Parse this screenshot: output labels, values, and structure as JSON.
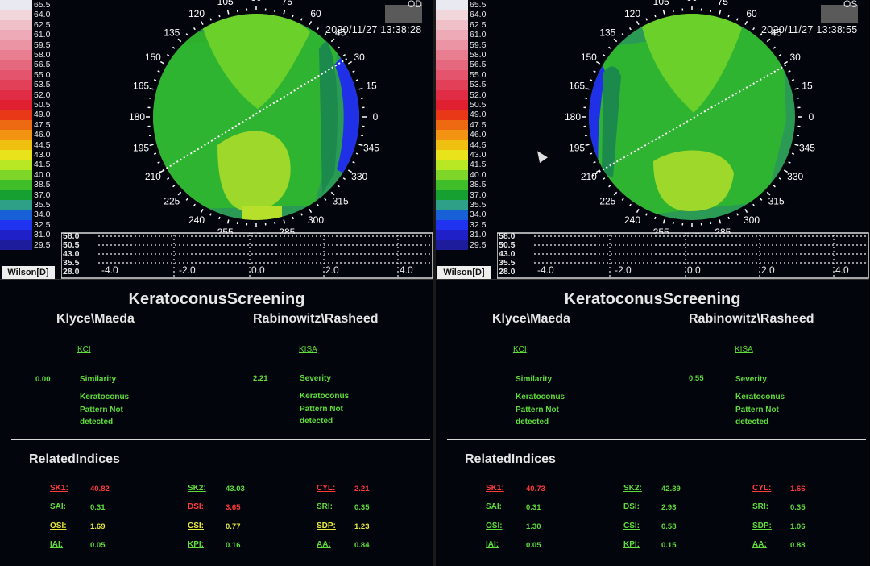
{
  "colors": {
    "green_text": "#5fdc3a",
    "red_text": "#ff3b3b",
    "yellow_text": "#e8e83c",
    "dark_bg": "#02050c"
  },
  "scale": {
    "label": "Wilson[D]",
    "values": [
      "65.5",
      "64.0",
      "62.5",
      "61.0",
      "59.5",
      "58.0",
      "56.5",
      "55.0",
      "53.5",
      "52.0",
      "50.5",
      "49.0",
      "47.5",
      "46.0",
      "44.5",
      "43.0",
      "41.5",
      "40.0",
      "38.5",
      "37.0",
      "35.5",
      "34.0",
      "32.5",
      "31.0",
      "29.5"
    ],
    "colors": [
      "#e9e9f2",
      "#f1d6dc",
      "#f0c0c8",
      "#eeaab6",
      "#eb94a4",
      "#e87e90",
      "#e6687e",
      "#e4546c",
      "#e24058",
      "#e02c44",
      "#e01f30",
      "#e83818",
      "#ee6a12",
      "#f29412",
      "#f0c010",
      "#e8e31a",
      "#b8e824",
      "#7ed628",
      "#3fbe2a",
      "#17a032",
      "#2ea088",
      "#1860d8",
      "#2033f0",
      "#2020c8",
      "#1c1c9c"
    ]
  },
  "map": {
    "angle_labels": [
      "0",
      "15",
      "30",
      "45",
      "60",
      "75",
      "90",
      "105",
      "120",
      "135",
      "150",
      "165",
      "180",
      "195",
      "210",
      "225",
      "240",
      "255",
      "270",
      "285",
      "300",
      "315",
      "330",
      "345"
    ]
  },
  "profile": {
    "y_labels": [
      "58.0",
      "50.5",
      "43.0",
      "35.5",
      "28.0"
    ],
    "x_labels": [
      "-4.0",
      "-2.0",
      "0.0",
      "2.0",
      "4.0"
    ]
  },
  "panels": [
    {
      "eye": "OD",
      "datestamp": "2020/11/27  13:38:28",
      "title": "KeratoconusScreening",
      "klyce": {
        "heading": "Klyce\\Maeda",
        "link": "KCI",
        "value": "0.00",
        "label": "Similarity",
        "result": [
          "Keratoconus",
          "Pattern Not",
          "detected"
        ]
      },
      "rabinowitz": {
        "heading": "Rabinowitz\\Rasheed",
        "link": "KISA",
        "value": "2.21",
        "label": "Severity",
        "result": [
          "Keratoconus",
          "Pattern Not",
          "detected"
        ]
      },
      "related_title": "RelatedIndices",
      "indices": [
        {
          "name": "SK1:",
          "value": "40.82",
          "color": "#ff3b3b"
        },
        {
          "name": "SK2:",
          "value": "43.03",
          "color": "#5fdc3a"
        },
        {
          "name": "CYL:",
          "value": "2.21",
          "color": "#ff3b3b"
        },
        {
          "name": "SAI:",
          "value": "0.31",
          "color": "#5fdc3a"
        },
        {
          "name": "DSI:",
          "value": "3.65",
          "color": "#ff3b3b"
        },
        {
          "name": "SRI:",
          "value": "0.35",
          "color": "#5fdc3a"
        },
        {
          "name": "OSI:",
          "value": "1.69",
          "color": "#e8e83c"
        },
        {
          "name": "CSI:",
          "value": "0.77",
          "color": "#e8e83c"
        },
        {
          "name": "SDP:",
          "value": "1.23",
          "color": "#e8e83c"
        },
        {
          "name": "IAI:",
          "value": "0.05",
          "color": "#5fdc3a"
        },
        {
          "name": "KPI:",
          "value": "0.16",
          "color": "#5fdc3a"
        },
        {
          "name": "AA:",
          "value": "0.84",
          "color": "#5fdc3a"
        }
      ]
    },
    {
      "eye": "OS",
      "datestamp": "2020/11/27  13:38:55",
      "title": "KeratoconusScreening",
      "klyce": {
        "heading": "Klyce\\Maeda",
        "link": "KCI",
        "value": "",
        "label": "Similarity",
        "result": [
          "Keratoconus",
          "Pattern Not",
          "detected"
        ]
      },
      "rabinowitz": {
        "heading": "Rabinowitz\\Rasheed",
        "link": "KISA",
        "value": "0.55",
        "label": "Severity",
        "result": [
          "Keratoconus",
          "Pattern Not",
          "detected"
        ]
      },
      "related_title": "RelatedIndices",
      "indices": [
        {
          "name": "SK1:",
          "value": "40.73",
          "color": "#ff3b3b"
        },
        {
          "name": "SK2:",
          "value": "42.39",
          "color": "#5fdc3a"
        },
        {
          "name": "CYL:",
          "value": "1.66",
          "color": "#ff3b3b"
        },
        {
          "name": "SAI:",
          "value": "0.31",
          "color": "#5fdc3a"
        },
        {
          "name": "DSI:",
          "value": "2.93",
          "color": "#5fdc3a"
        },
        {
          "name": "SRI:",
          "value": "0.35",
          "color": "#5fdc3a"
        },
        {
          "name": "OSI:",
          "value": "1.30",
          "color": "#5fdc3a"
        },
        {
          "name": "CSI:",
          "value": "0.58",
          "color": "#5fdc3a"
        },
        {
          "name": "SDP:",
          "value": "1.06",
          "color": "#5fdc3a"
        },
        {
          "name": "IAI:",
          "value": "0.05",
          "color": "#5fdc3a"
        },
        {
          "name": "KPI:",
          "value": "0.15",
          "color": "#5fdc3a"
        },
        {
          "name": "AA:",
          "value": "0.88",
          "color": "#5fdc3a"
        }
      ]
    }
  ]
}
